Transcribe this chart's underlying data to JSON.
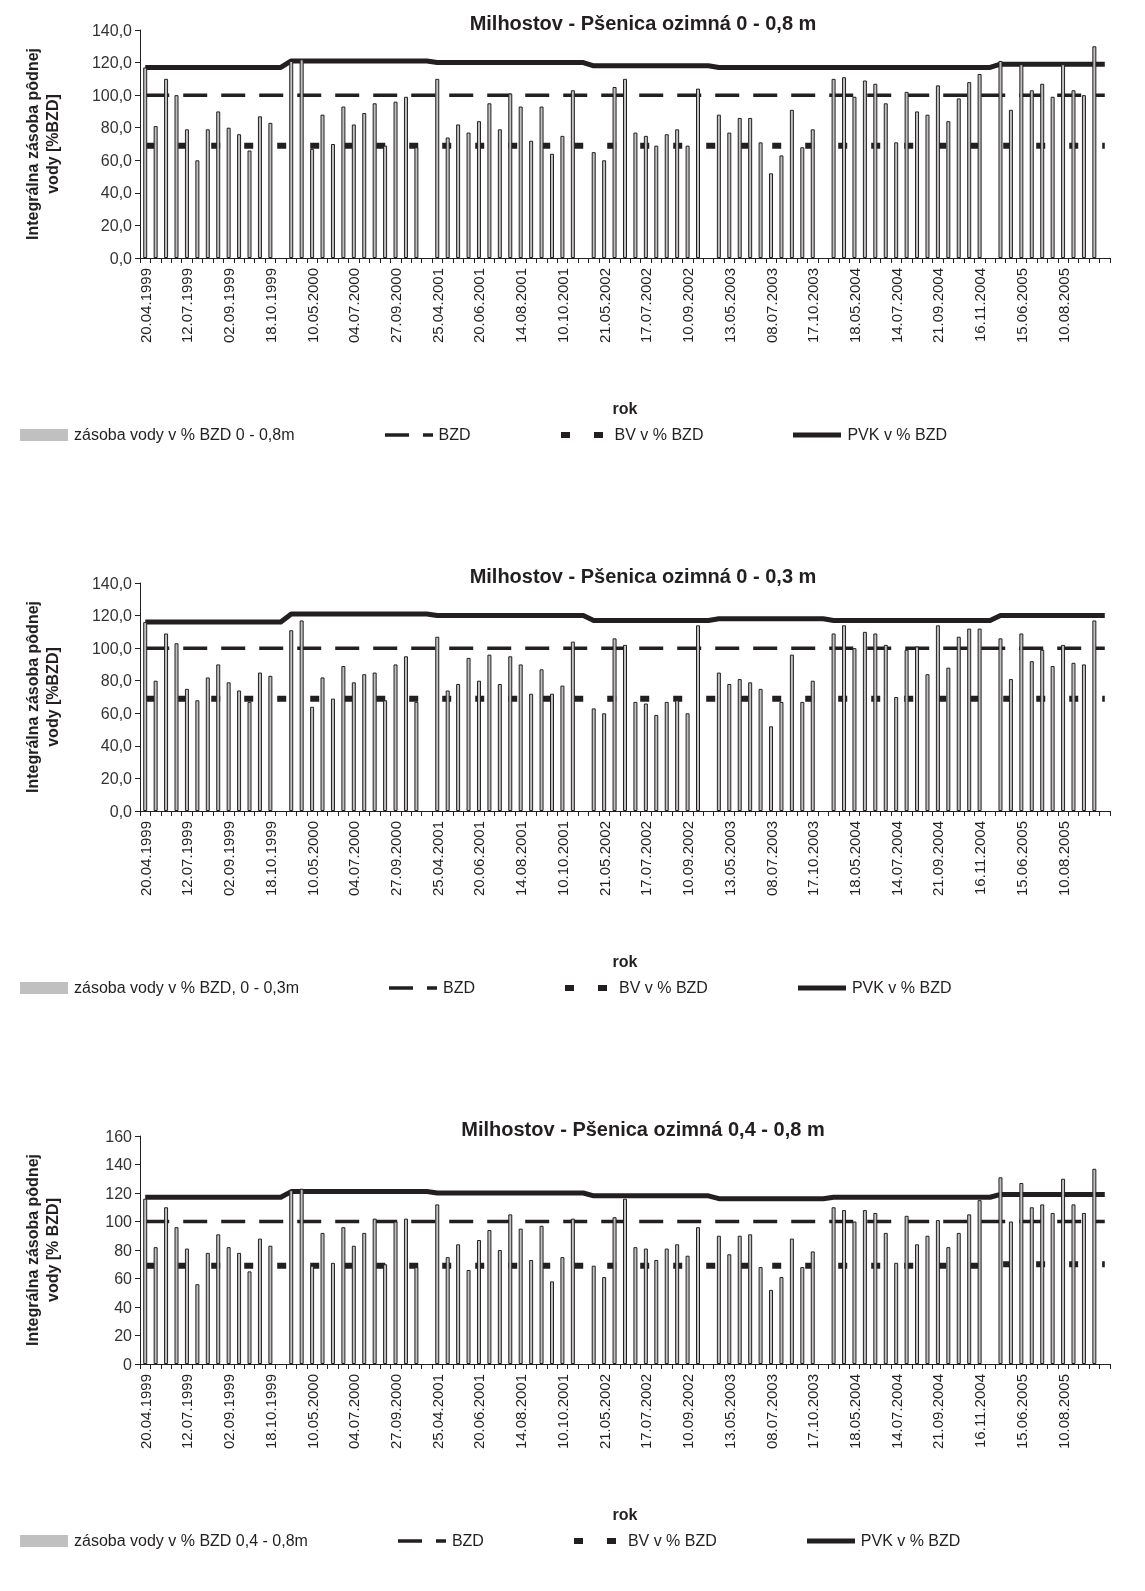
{
  "chart_data": [
    {
      "type": "bar",
      "title": "Milhostov - Pšenica ozimná 0 - 0,8 m",
      "xlabel": "rok",
      "ylabel": "Integrálna zásoba pôdnej vody [%BZD]",
      "legend": "bottom",
      "categories": [
        "20.04.1999",
        null,
        null,
        null,
        "12.07.1999",
        null,
        null,
        null,
        "02.09.1999",
        null,
        null,
        null,
        "18.10.1999",
        null,
        null,
        null,
        "10.05.2000",
        null,
        null,
        null,
        "04.07.2000",
        null,
        null,
        null,
        "27.09.2000",
        null,
        null,
        null,
        "25.04.2001",
        null,
        null,
        null,
        "20.06.2001",
        null,
        null,
        null,
        "14.08.2001",
        null,
        null,
        null,
        "10.10.2001",
        null,
        null,
        null,
        "21.05.2002",
        null,
        null,
        null,
        "17.07.2002",
        null,
        null,
        null,
        "10.09.2002",
        null,
        null,
        null,
        "13.05.2003",
        null,
        null,
        null,
        "08.07.2003",
        null,
        null,
        null,
        "17.10.2003",
        null,
        null,
        null,
        "18.05.2004",
        null,
        null,
        null,
        "14.07.2004",
        null,
        null,
        null,
        "21.09.2004",
        null,
        null,
        null,
        "16.11.2004",
        null,
        null,
        null,
        "15.06.2005",
        null,
        null,
        null,
        "10.08.2005",
        null,
        null,
        null,
        null
      ],
      "ylim": [
        0,
        140
      ],
      "yticks": [
        {
          "value": 0,
          "label": "0,0"
        },
        {
          "value": 20,
          "label": "20,0"
        },
        {
          "value": 40,
          "label": "40,0"
        },
        {
          "value": 60,
          "label": "60,0"
        },
        {
          "value": 80,
          "label": "80,0"
        },
        {
          "value": 100,
          "label": "100,0"
        },
        {
          "value": 120,
          "label": "120,0"
        },
        {
          "value": 140,
          "label": "140,0"
        }
      ],
      "series": [
        {
          "name": "zásoba vody v % BZD 0 - 0,8m",
          "color": "#c0c0c0",
          "values": [
            117,
            81,
            110,
            100,
            79,
            60,
            79,
            90,
            80,
            76,
            66,
            87,
            83,
            null,
            121,
            122,
            67,
            88,
            70,
            93,
            82,
            89,
            95,
            69,
            96,
            99,
            68,
            null,
            110,
            74,
            82,
            77,
            84,
            95,
            79,
            101,
            93,
            72,
            93,
            64,
            75,
            103,
            null,
            65,
            60,
            105,
            110,
            77,
            75,
            69,
            76,
            79,
            69,
            104,
            null,
            88,
            77,
            86,
            86,
            71,
            52,
            63,
            91,
            68,
            79,
            null,
            110,
            111,
            99,
            109,
            107,
            95,
            71,
            102,
            90,
            88,
            106,
            84,
            98,
            108,
            113,
            null,
            121,
            91,
            119,
            103,
            107,
            99,
            119,
            103,
            100,
            130,
            null
          ]
        },
        {
          "name": "BZD",
          "type": "line",
          "color": "#231f20",
          "line_style": "dashed",
          "values": [
            100,
            100,
            100,
            100,
            100,
            100,
            100,
            100,
            100,
            100,
            100,
            100,
            100,
            100,
            100,
            100,
            100,
            100,
            100,
            100,
            100,
            100,
            100,
            100,
            100,
            100,
            100,
            100,
            100,
            100,
            100,
            100,
            100,
            100,
            100,
            100,
            100,
            100,
            100,
            100,
            100,
            100,
            100,
            100,
            100,
            100,
            100,
            100,
            100,
            100,
            100,
            100,
            100,
            100,
            100,
            100,
            100,
            100,
            100,
            100,
            100,
            100,
            100,
            100,
            100,
            100,
            100,
            100,
            100,
            100,
            100,
            100,
            100,
            100,
            100,
            100,
            100,
            100,
            100,
            100,
            100,
            100,
            100,
            100,
            100,
            100,
            100,
            100,
            100,
            100,
            100,
            100,
            100
          ]
        },
        {
          "name": "BV v % BZD",
          "type": "line",
          "color": "#231f20",
          "line_style": "dashed",
          "values": [
            69,
            69,
            69,
            69,
            69,
            69,
            69,
            69,
            69,
            69,
            69,
            69,
            69,
            69,
            69,
            69,
            69,
            69,
            69,
            69,
            69,
            69,
            69,
            69,
            69,
            69,
            69,
            69,
            69,
            69,
            69,
            69,
            69,
            69,
            69,
            69,
            69,
            69,
            69,
            69,
            69,
            69,
            69,
            69,
            69,
            69,
            69,
            69,
            69,
            69,
            69,
            69,
            69,
            69,
            69,
            69,
            69,
            69,
            69,
            69,
            69,
            69,
            69,
            69,
            69,
            69,
            69,
            69,
            69,
            69,
            69,
            69,
            69,
            69,
            69,
            69,
            69,
            69,
            69,
            69,
            69,
            69,
            69,
            69,
            69,
            69,
            69,
            69,
            69,
            69,
            69,
            69,
            69
          ]
        },
        {
          "name": "PVK v % BZD",
          "type": "line",
          "color": "#231f20",
          "line_style": "solid",
          "values": [
            117,
            117,
            117,
            117,
            117,
            117,
            117,
            117,
            117,
            117,
            117,
            117,
            117,
            117,
            121,
            121,
            121,
            121,
            121,
            121,
            121,
            121,
            121,
            121,
            121,
            121,
            121,
            121,
            120,
            120,
            120,
            120,
            120,
            120,
            120,
            120,
            120,
            120,
            120,
            120,
            120,
            120,
            120,
            118,
            118,
            118,
            118,
            118,
            118,
            118,
            118,
            118,
            118,
            118,
            118,
            117,
            117,
            117,
            117,
            117,
            117,
            117,
            117,
            117,
            117,
            117,
            117,
            117,
            117,
            117,
            117,
            117,
            117,
            117,
            117,
            117,
            117,
            117,
            117,
            117,
            117,
            117,
            119,
            119,
            119,
            119,
            119,
            119,
            119,
            119,
            119,
            119,
            119
          ]
        }
      ]
    },
    {
      "type": "bar",
      "title": "Milhostov - Pšenica ozimná 0 - 0,3 m",
      "xlabel": "rok",
      "ylabel": "Integrálna zásoba pôdnej vody [%BZD]",
      "legend": "bottom",
      "categories": [
        "20.04.1999",
        null,
        null,
        null,
        "12.07.1999",
        null,
        null,
        null,
        "02.09.1999",
        null,
        null,
        null,
        "18.10.1999",
        null,
        null,
        null,
        "10.05.2000",
        null,
        null,
        null,
        "04.07.2000",
        null,
        null,
        null,
        "27.09.2000",
        null,
        null,
        null,
        "25.04.2001",
        null,
        null,
        null,
        "20.06.2001",
        null,
        null,
        null,
        "14.08.2001",
        null,
        null,
        null,
        "10.10.2001",
        null,
        null,
        null,
        "21.05.2002",
        null,
        null,
        null,
        "17.07.2002",
        null,
        null,
        null,
        "10.09.2002",
        null,
        null,
        null,
        "13.05.2003",
        null,
        null,
        null,
        "08.07.2003",
        null,
        null,
        null,
        "17.10.2003",
        null,
        null,
        null,
        "18.05.2004",
        null,
        null,
        null,
        "14.07.2004",
        null,
        null,
        null,
        "21.09.2004",
        null,
        null,
        null,
        "16.11.2004",
        null,
        null,
        null,
        "15.06.2005",
        null,
        null,
        null,
        "10.08.2005",
        null,
        null,
        null,
        null
      ],
      "ylim": [
        0,
        140
      ],
      "yticks": [
        {
          "value": 0,
          "label": "0,0"
        },
        {
          "value": 20,
          "label": "20,0"
        },
        {
          "value": 40,
          "label": "40,0"
        },
        {
          "value": 60,
          "label": "60,0"
        },
        {
          "value": 80,
          "label": "80,0"
        },
        {
          "value": 100,
          "label": "100,0"
        },
        {
          "value": 120,
          "label": "120,0"
        },
        {
          "value": 140,
          "label": "140,0"
        }
      ],
      "series": [
        {
          "name": "zásoba vody v % BZD, 0 - 0,3m",
          "color": "#c0c0c0",
          "values": [
            116,
            80,
            109,
            103,
            75,
            68,
            82,
            90,
            79,
            74,
            67,
            85,
            83,
            null,
            111,
            117,
            64,
            82,
            69,
            89,
            79,
            84,
            85,
            68,
            90,
            95,
            67,
            null,
            107,
            74,
            78,
            94,
            80,
            96,
            78,
            95,
            90,
            72,
            87,
            72,
            77,
            104,
            null,
            63,
            60,
            106,
            102,
            67,
            66,
            59,
            67,
            68,
            60,
            114,
            null,
            85,
            78,
            81,
            79,
            75,
            52,
            67,
            96,
            67,
            80,
            null,
            109,
            114,
            100,
            110,
            109,
            102,
            70,
            99,
            101,
            84,
            114,
            88,
            107,
            112,
            112,
            null,
            106,
            81,
            109,
            92,
            99,
            89,
            102,
            91,
            90,
            117,
            null
          ]
        },
        {
          "name": "BZD",
          "type": "line",
          "color": "#231f20",
          "line_style": "dashed",
          "values": [
            100,
            100,
            100,
            100,
            100,
            100,
            100,
            100,
            100,
            100,
            100,
            100,
            100,
            100,
            100,
            100,
            100,
            100,
            100,
            100,
            100,
            100,
            100,
            100,
            100,
            100,
            100,
            100,
            100,
            100,
            100,
            100,
            100,
            100,
            100,
            100,
            100,
            100,
            100,
            100,
            100,
            100,
            100,
            100,
            100,
            100,
            100,
            100,
            100,
            100,
            100,
            100,
            100,
            100,
            100,
            100,
            100,
            100,
            100,
            100,
            100,
            100,
            100,
            100,
            100,
            100,
            100,
            100,
            100,
            100,
            100,
            100,
            100,
            100,
            100,
            100,
            100,
            100,
            100,
            100,
            100,
            100,
            100,
            100,
            100,
            100,
            100,
            100,
            100,
            100,
            100,
            100,
            100
          ]
        },
        {
          "name": "BV v % BZD",
          "type": "line",
          "color": "#231f20",
          "line_style": "dashed",
          "values": [
            69,
            69,
            69,
            69,
            69,
            69,
            69,
            69,
            69,
            69,
            69,
            69,
            69,
            69,
            69,
            69,
            69,
            69,
            69,
            69,
            69,
            69,
            69,
            69,
            69,
            69,
            69,
            69,
            69,
            69,
            69,
            69,
            69,
            69,
            69,
            69,
            69,
            69,
            69,
            69,
            69,
            69,
            69,
            69,
            69,
            69,
            69,
            69,
            69,
            69,
            69,
            69,
            69,
            69,
            69,
            69,
            69,
            69,
            69,
            69,
            69,
            69,
            69,
            69,
            69,
            69,
            69,
            69,
            69,
            69,
            69,
            69,
            69,
            69,
            69,
            69,
            69,
            69,
            69,
            69,
            69,
            69,
            69,
            69,
            69,
            69,
            69,
            69,
            69,
            69,
            69,
            69,
            69
          ]
        },
        {
          "name": "PVK v % BZD",
          "type": "line",
          "color": "#231f20",
          "line_style": "solid",
          "values": [
            116,
            116,
            116,
            116,
            116,
            116,
            116,
            116,
            116,
            116,
            116,
            116,
            116,
            116,
            121,
            121,
            121,
            121,
            121,
            121,
            121,
            121,
            121,
            121,
            121,
            121,
            121,
            121,
            120,
            120,
            120,
            120,
            120,
            120,
            120,
            120,
            120,
            120,
            120,
            120,
            120,
            120,
            120,
            117,
            117,
            117,
            117,
            117,
            117,
            117,
            117,
            117,
            117,
            117,
            117,
            118,
            118,
            118,
            118,
            118,
            118,
            118,
            118,
            118,
            118,
            118,
            117,
            117,
            117,
            117,
            117,
            117,
            117,
            117,
            117,
            117,
            117,
            117,
            117,
            117,
            117,
            117,
            120,
            120,
            120,
            120,
            120,
            120,
            120,
            120,
            120,
            120,
            120
          ]
        }
      ]
    },
    {
      "type": "bar",
      "title": "Milhostov - Pšenica ozimná 0,4 - 0,8 m",
      "xlabel": "rok",
      "ylabel": "Integrálna zásoba pôdnej vody [% BZD]",
      "legend": "bottom",
      "categories": [
        "20.04.1999",
        null,
        null,
        null,
        "12.07.1999",
        null,
        null,
        null,
        "02.09.1999",
        null,
        null,
        null,
        "18.10.1999",
        null,
        null,
        null,
        "10.05.2000",
        null,
        null,
        null,
        "04.07.2000",
        null,
        null,
        null,
        "27.09.2000",
        null,
        null,
        null,
        "25.04.2001",
        null,
        null,
        null,
        "20.06.2001",
        null,
        null,
        null,
        "14.08.2001",
        null,
        null,
        null,
        "10.10.2001",
        null,
        null,
        null,
        "21.05.2002",
        null,
        null,
        null,
        "17.07.2002",
        null,
        null,
        null,
        "10.09.2002",
        null,
        null,
        null,
        "13.05.2003",
        null,
        null,
        null,
        "08.07.2003",
        null,
        null,
        null,
        "17.10.2003",
        null,
        null,
        null,
        "18.05.2004",
        null,
        null,
        null,
        "14.07.2004",
        null,
        null,
        null,
        "21.09.2004",
        null,
        null,
        null,
        "16.11.2004",
        null,
        null,
        null,
        "15.06.2005",
        null,
        null,
        null,
        "10.08.2005",
        null,
        null,
        null,
        null
      ],
      "ylim": [
        0,
        160
      ],
      "yticks": [
        0,
        20,
        40,
        60,
        80,
        100,
        120,
        140,
        160
      ],
      "series": [
        {
          "name": "zásoba vody v % BZD 0,4 - 0,8m",
          "color": "#c0c0c0",
          "values": [
            116,
            82,
            110,
            96,
            81,
            56,
            78,
            91,
            82,
            78,
            65,
            88,
            83,
            null,
            122,
            123,
            69,
            92,
            71,
            96,
            83,
            92,
            102,
            70,
            100,
            102,
            68,
            null,
            112,
            75,
            84,
            66,
            87,
            94,
            80,
            105,
            95,
            73,
            97,
            58,
            75,
            102,
            null,
            69,
            61,
            103,
            116,
            82,
            81,
            73,
            81,
            84,
            76,
            96,
            null,
            90,
            77,
            90,
            91,
            68,
            52,
            61,
            88,
            68,
            79,
            null,
            110,
            108,
            100,
            108,
            106,
            92,
            71,
            104,
            84,
            90,
            101,
            82,
            92,
            105,
            115,
            null,
            131,
            100,
            127,
            110,
            112,
            106,
            130,
            112,
            106,
            137,
            null
          ]
        },
        {
          "name": "BZD",
          "type": "line",
          "color": "#231f20",
          "line_style": "dashed",
          "values": [
            100,
            100,
            100,
            100,
            100,
            100,
            100,
            100,
            100,
            100,
            100,
            100,
            100,
            100,
            100,
            100,
            100,
            100,
            100,
            100,
            100,
            100,
            100,
            100,
            100,
            100,
            100,
            100,
            100,
            100,
            100,
            100,
            100,
            100,
            100,
            100,
            100,
            100,
            100,
            100,
            100,
            100,
            100,
            100,
            100,
            100,
            100,
            100,
            100,
            100,
            100,
            100,
            100,
            100,
            100,
            100,
            100,
            100,
            100,
            100,
            100,
            100,
            100,
            100,
            100,
            100,
            100,
            100,
            100,
            100,
            100,
            100,
            100,
            100,
            100,
            100,
            100,
            100,
            100,
            100,
            100,
            100,
            100,
            100,
            100,
            100,
            100,
            100,
            100,
            100,
            100,
            100,
            100
          ]
        },
        {
          "name": "BV v % BZD",
          "type": "line",
          "color": "#231f20",
          "line_style": "dashed",
          "values": [
            69,
            69,
            69,
            69,
            69,
            69,
            69,
            69,
            69,
            69,
            69,
            69,
            69,
            69,
            69,
            69,
            69,
            69,
            69,
            69,
            69,
            69,
            69,
            69,
            69,
            69,
            69,
            69,
            69,
            69,
            69,
            69,
            69,
            69,
            69,
            69,
            69,
            69,
            69,
            69,
            69,
            69,
            69,
            69,
            69,
            69,
            69,
            69,
            69,
            69,
            69,
            69,
            69,
            69,
            69,
            69,
            69,
            69,
            69,
            69,
            69,
            69,
            69,
            69,
            69,
            69,
            69,
            69,
            69,
            69,
            69,
            69,
            69,
            69,
            69,
            69,
            69,
            69,
            69,
            69,
            69,
            69,
            70,
            70,
            70,
            70,
            70,
            70,
            70,
            70,
            70,
            70,
            70
          ]
        },
        {
          "name": "PVK v % BZD",
          "type": "line",
          "color": "#231f20",
          "line_style": "solid",
          "values": [
            117,
            117,
            117,
            117,
            117,
            117,
            117,
            117,
            117,
            117,
            117,
            117,
            117,
            117,
            121,
            121,
            121,
            121,
            121,
            121,
            121,
            121,
            121,
            121,
            121,
            121,
            121,
            121,
            120,
            120,
            120,
            120,
            120,
            120,
            120,
            120,
            120,
            120,
            120,
            120,
            120,
            120,
            120,
            118,
            118,
            118,
            118,
            118,
            118,
            118,
            118,
            118,
            118,
            118,
            118,
            116,
            116,
            116,
            116,
            116,
            116,
            116,
            116,
            116,
            116,
            116,
            117,
            117,
            117,
            117,
            117,
            117,
            117,
            117,
            117,
            117,
            117,
            117,
            117,
            117,
            117,
            117,
            119,
            119,
            119,
            119,
            119,
            119,
            119,
            119,
            119,
            119,
            119
          ]
        }
      ]
    }
  ]
}
